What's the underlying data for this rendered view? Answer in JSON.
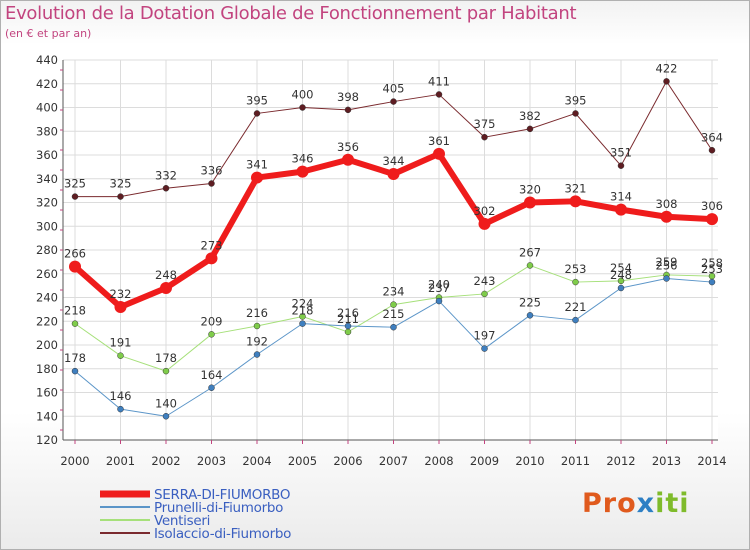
{
  "chart_data": {
    "type": "line",
    "title": "Evolution de la Dotation Globale de Fonctionnement par Habitant",
    "subtitle": "(en € et par an)",
    "categories": [
      "2000",
      "2001",
      "2002",
      "2003",
      "2004",
      "2005",
      "2006",
      "2007",
      "2008",
      "2009",
      "2010",
      "2011",
      "2012",
      "2013",
      "2014"
    ],
    "ylim": [
      120,
      440
    ],
    "yticks": [
      120,
      140,
      160,
      180,
      200,
      220,
      240,
      260,
      280,
      300,
      320,
      340,
      360,
      380,
      400,
      420,
      440
    ],
    "grid": true,
    "series": [
      {
        "name": "Isolaccio-di-Fiumorbo",
        "color": "#7a2a2e",
        "width": 1,
        "marker": "#5e1d22",
        "values": [
          325,
          325,
          332,
          336,
          395,
          400,
          398,
          405,
          411,
          375,
          382,
          395,
          351,
          422,
          364
        ]
      },
      {
        "name": "Ventiseri",
        "color": "#a6e07a",
        "width": 1,
        "marker": "#7fcc4a",
        "values": [
          218,
          191,
          178,
          209,
          216,
          224,
          211,
          234,
          240,
          243,
          267,
          253,
          254,
          259,
          258
        ]
      },
      {
        "name": "Prunelli-di-Fiumorbo",
        "color": "#5b95c8",
        "width": 1,
        "marker": "#3f7fbf",
        "values": [
          178,
          146,
          140,
          164,
          192,
          218,
          216,
          215,
          237,
          197,
          225,
          221,
          248,
          256,
          253
        ]
      },
      {
        "name": "SERRA-DI-FIUMORBO",
        "color": "#ef1c1c",
        "width": 6,
        "marker": "#ef1c1c",
        "values": [
          266,
          232,
          248,
          273,
          341,
          346,
          356,
          344,
          361,
          302,
          320,
          321,
          314,
          308,
          306
        ]
      }
    ],
    "legend": [
      {
        "name": "SERRA-DI-FIUMORBO",
        "color": "#ef1c1c"
      },
      {
        "name": "Prunelli-di-Fiumorbo",
        "color": "#5b95c8"
      },
      {
        "name": "Ventiseri",
        "color": "#a6e07a"
      },
      {
        "name": "Isolaccio-di-Fiumorbo",
        "color": "#7a2a2e"
      }
    ],
    "legend_position": "bottom-left"
  },
  "logo": {
    "part1": "Pro",
    "part2": "x",
    "part3": "iti"
  }
}
